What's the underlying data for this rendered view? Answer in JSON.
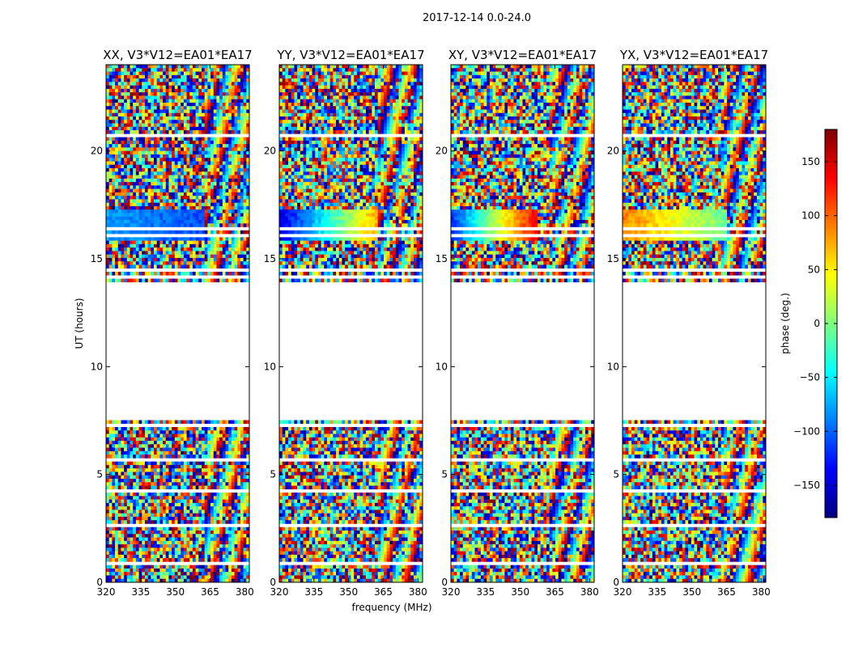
{
  "figure": {
    "suptitle": "2017-12-14 0.0-24.0"
  },
  "chart_data": {
    "type": "heatmap",
    "title": "2017-12-14 0.0-24.0",
    "xlabel": "frequency (MHz)",
    "ylabel": "UT (hours)",
    "xlim": [
      320,
      382
    ],
    "ylim": [
      0,
      24
    ],
    "x_ticks": [
      320,
      335,
      350,
      365,
      380
    ],
    "x_tick_labels": [
      "320",
      "335",
      "350",
      "365",
      "380"
    ],
    "y_ticks": [
      0,
      5,
      10,
      15,
      20
    ],
    "y_tick_labels": [
      "0",
      "5",
      "10",
      "15",
      "20"
    ],
    "panels": [
      {
        "name": "xx",
        "title": "XX, V3*V12=EA01*EA17"
      },
      {
        "name": "yy",
        "title": "YY, V3*V12=EA01*EA17"
      },
      {
        "name": "xy",
        "title": "XY, V3*V12=EA01*EA17"
      },
      {
        "name": "yx",
        "title": "YX, V3*V12=EA01*EA17"
      }
    ],
    "observed_ut_ranges": [
      [
        0,
        7.5
      ],
      [
        13.7,
        24
      ]
    ],
    "gap_ut_range": [
      7.5,
      13.7
    ],
    "smooth_phase_blocks": [
      {
        "panel": "xx",
        "ut_range": [
          15.8,
          17.2
        ],
        "freq_range": [
          320,
          363
        ],
        "phase_start": -80,
        "phase_end": -110
      },
      {
        "panel": "yy",
        "ut_range": [
          15.8,
          17.2
        ],
        "freq_range": [
          320,
          363
        ],
        "phase_start": -150,
        "phase_end": 80
      },
      {
        "panel": "xy",
        "ut_range": [
          15.8,
          17.2
        ],
        "freq_range": [
          320,
          358
        ],
        "phase_start": -120,
        "phase_end": 150
      },
      {
        "panel": "yx",
        "ut_range": [
          15.8,
          17.2
        ],
        "freq_range": [
          320,
          365
        ],
        "phase_start": 90,
        "phase_end": -10
      }
    ],
    "colorbar": {
      "label": "phase (deg.)",
      "colormap": "jet",
      "range": [
        -180,
        180
      ],
      "ticks": [
        -150,
        -100,
        -50,
        0,
        50,
        100,
        150
      ],
      "tick_labels": [
        "−150",
        "−100",
        "−50",
        "0",
        "50",
        "100",
        "150"
      ]
    }
  }
}
